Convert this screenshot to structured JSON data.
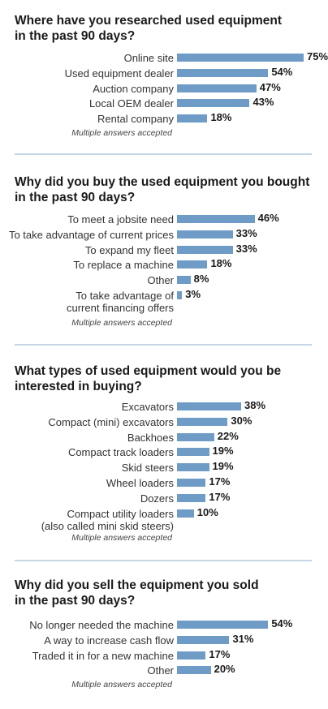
{
  "chart_data": [
    {
      "type": "bar",
      "title": "Where have you researched used equipment in the past 90 days?",
      "categories": [
        "Online site",
        "Used equipment dealer",
        "Auction company",
        "Local OEM dealer",
        "Rental company"
      ],
      "values": [
        75,
        54,
        47,
        43,
        18
      ],
      "value_labels": [
        "75%",
        "54%",
        "47%",
        "43%",
        "18%"
      ],
      "note": "Multiple answers accepted",
      "bar_color": "#6f9cc7"
    },
    {
      "type": "bar",
      "title": "Why did you buy the used equipment you bought in the past 90 days?",
      "categories": [
        "To meet a jobsite need",
        "To take advantage of current prices",
        "To expand my fleet",
        "To replace a machine",
        "Other",
        "To take advantage of current financing offers"
      ],
      "values": [
        46,
        33,
        33,
        18,
        8,
        3
      ],
      "value_labels": [
        "46%",
        "33%",
        "33%",
        "18%",
        "8%",
        "3%"
      ],
      "note": "Multiple answers accepted",
      "bar_color": "#6f9cc7"
    },
    {
      "type": "bar",
      "title": "What types of used equipment would you be interested in buying?",
      "categories": [
        "Excavators",
        "Compact (mini) excavators",
        "Backhoes",
        "Compact track loaders",
        "Skid steers",
        "Wheel loaders",
        "Dozers",
        "Compact utility loaders (also called mini skid steers)"
      ],
      "values": [
        38,
        30,
        22,
        19,
        19,
        17,
        17,
        10
      ],
      "value_labels": [
        "38%",
        "30%",
        "22%",
        "19%",
        "19%",
        "17%",
        "17%",
        "10%"
      ],
      "note": "Multiple answers accepted",
      "bar_color": "#6f9cc7"
    },
    {
      "type": "bar",
      "title": "Why did you sell the equipment you sold in the past 90 days?",
      "categories": [
        "No longer needed the machine",
        "A way to increase cash flow",
        "Traded it in for a new machine",
        "Other"
      ],
      "values": [
        54,
        31,
        17,
        20
      ],
      "value_labels": [
        "54%",
        "31%",
        "17%",
        "20%"
      ],
      "note": "Multiple answers accepted",
      "bar_color": "#6f9cc7"
    }
  ]
}
